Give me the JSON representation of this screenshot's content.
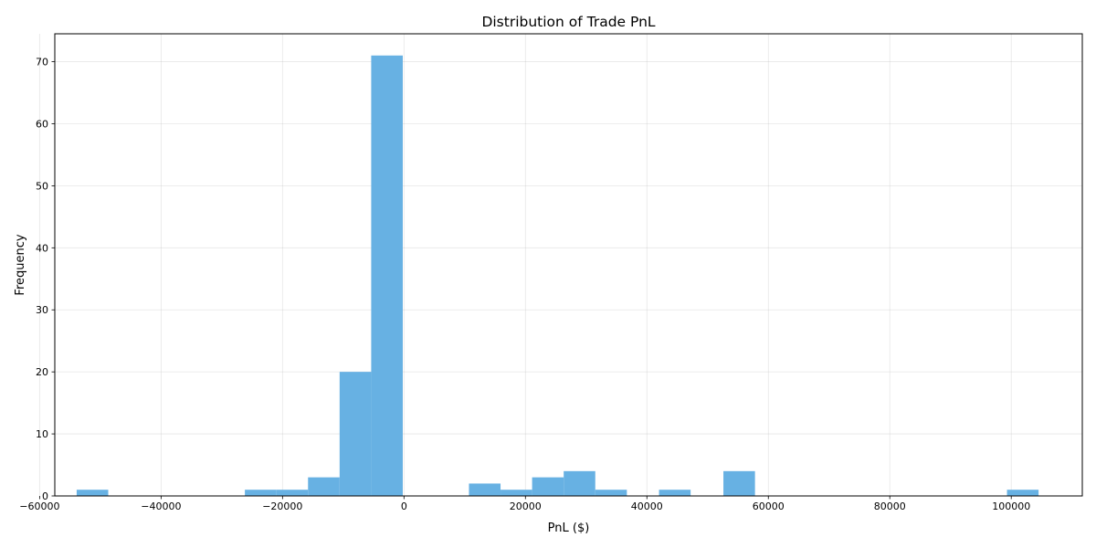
{
  "chart_data": {
    "type": "bar",
    "title": "Distribution of Trade PnL",
    "xlabel": "PnL ($)",
    "ylabel": "Frequency",
    "xlim": [
      -57500,
      111700
    ],
    "ylim": [
      0,
      74.5
    ],
    "grid": true,
    "bar_color": "#67b1e3",
    "x_ticks": [
      -60000,
      -40000,
      -20000,
      0,
      20000,
      40000,
      60000,
      80000,
      100000
    ],
    "x_tick_labels": [
      "−60000",
      "−40000",
      "−20000",
      "0",
      "20000",
      "40000",
      "60000",
      "80000",
      "100000"
    ],
    "y_ticks": [
      0,
      10,
      20,
      30,
      40,
      50,
      60,
      70
    ],
    "y_tick_labels": [
      "0",
      "10",
      "20",
      "30",
      "40",
      "50",
      "60",
      "70"
    ],
    "bins": [
      {
        "start": -53900,
        "end": -48700,
        "count": 1
      },
      {
        "start": -26200,
        "end": -21000,
        "count": 1
      },
      {
        "start": -21000,
        "end": -15800,
        "count": 1
      },
      {
        "start": -15800,
        "end": -10600,
        "count": 3
      },
      {
        "start": -10600,
        "end": -5400,
        "count": 20
      },
      {
        "start": -5400,
        "end": -200,
        "count": 71
      },
      {
        "start": 10700,
        "end": 15900,
        "count": 2
      },
      {
        "start": 15900,
        "end": 21100,
        "count": 1
      },
      {
        "start": 21100,
        "end": 26300,
        "count": 3
      },
      {
        "start": 26300,
        "end": 31500,
        "count": 4
      },
      {
        "start": 31500,
        "end": 36700,
        "count": 1
      },
      {
        "start": 42000,
        "end": 47200,
        "count": 1
      },
      {
        "start": 52600,
        "end": 57800,
        "count": 4
      },
      {
        "start": 99300,
        "end": 104500,
        "count": 1
      }
    ]
  }
}
